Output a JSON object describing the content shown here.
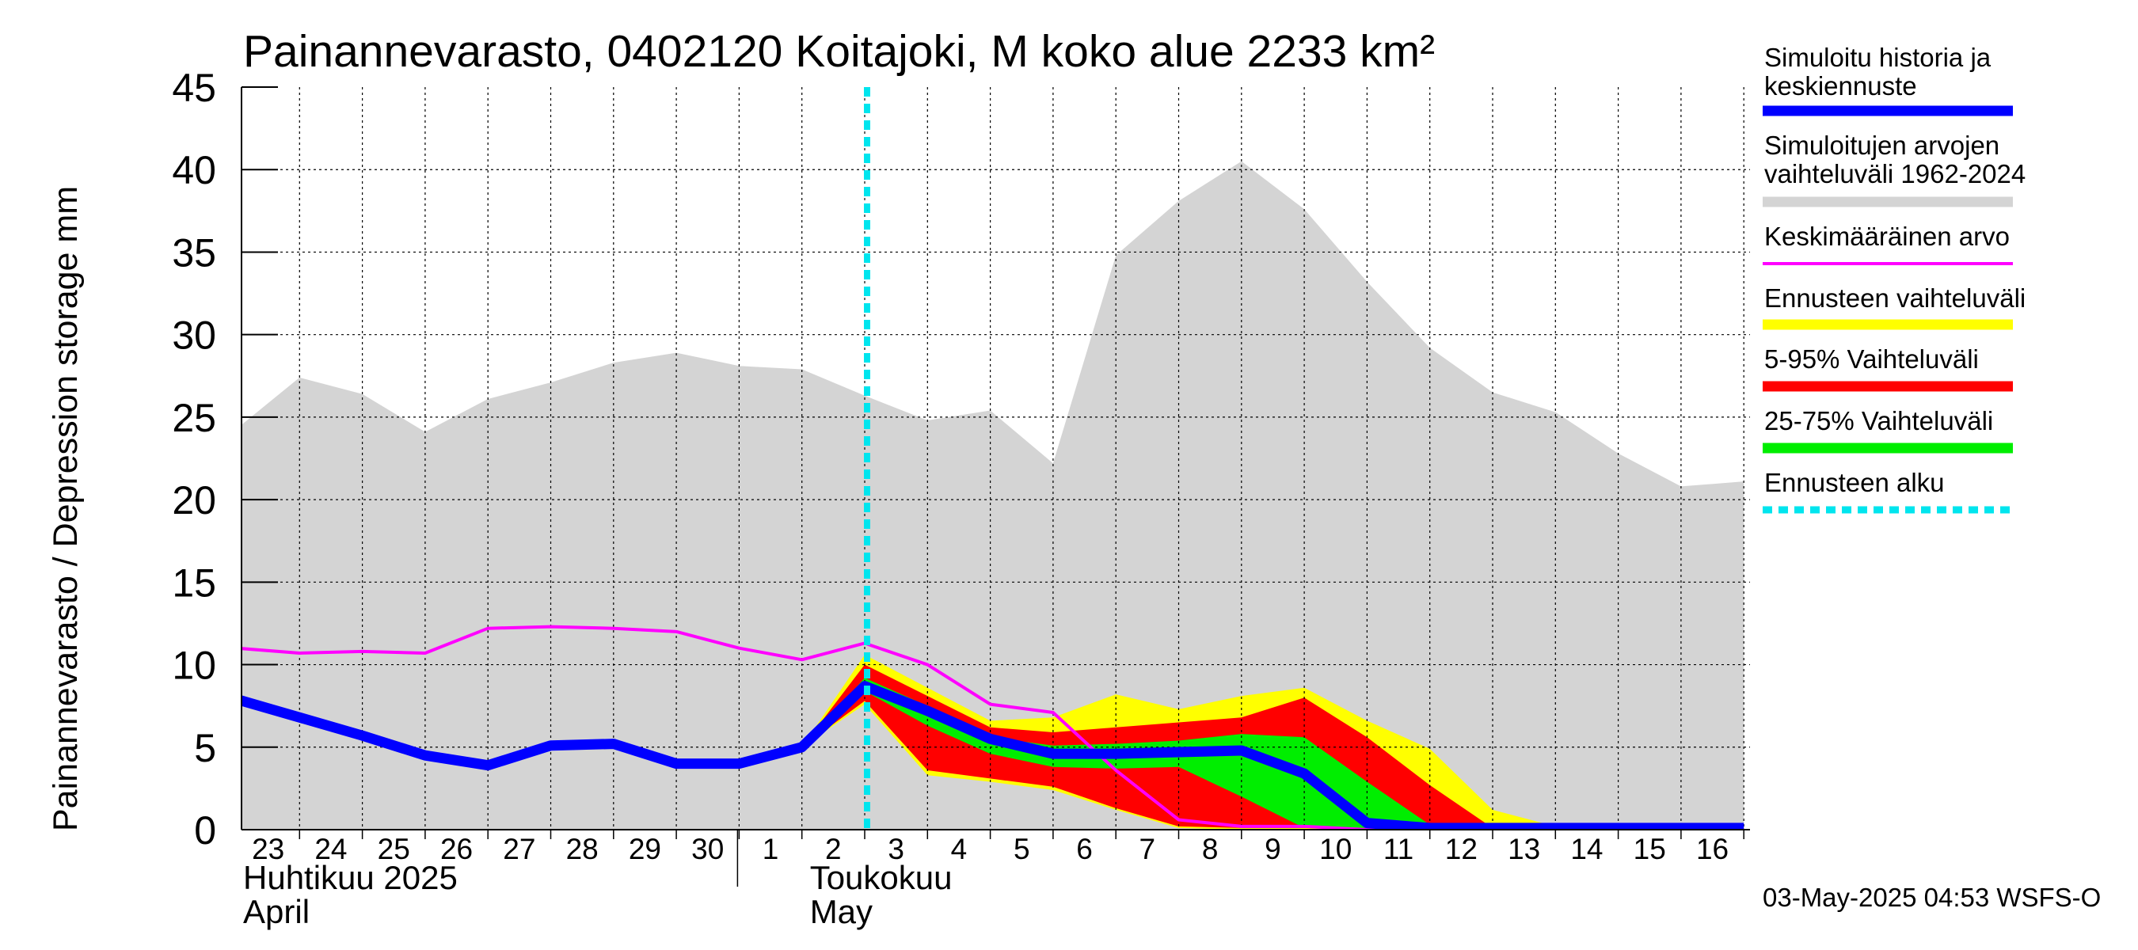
{
  "colors": {
    "background": "#ffffff",
    "history_band": "#d4d4d4",
    "forecast_full": "#ffff00",
    "forecast_5_95": "#ff0000",
    "forecast_25_75": "#00ee00",
    "simulated": "#0000ff",
    "mean": "#ff00ff",
    "forecast_start": "#00e5ee",
    "grid": "#000000"
  },
  "chart_data": {
    "type": "area",
    "title": "Painannevarasto, 0402120 Koitajoki, M koko alue 2233 km²",
    "ylabel": "Painannevarasto / Depression storage    mm",
    "ylim": [
      0,
      45
    ],
    "yticks": [
      0,
      5,
      10,
      15,
      20,
      25,
      30,
      35,
      40,
      45
    ],
    "x": [
      "2025-04-23",
      "2025-04-24",
      "2025-04-25",
      "2025-04-26",
      "2025-04-27",
      "2025-04-28",
      "2025-04-29",
      "2025-04-30",
      "2025-05-01",
      "2025-05-02",
      "2025-05-03",
      "2025-05-04",
      "2025-05-05",
      "2025-05-06",
      "2025-05-07",
      "2025-05-08",
      "2025-05-09",
      "2025-05-10",
      "2025-05-11",
      "2025-05-12",
      "2025-05-13",
      "2025-05-14",
      "2025-05-15",
      "2025-05-16",
      "2025-05-17"
    ],
    "xtick_labels": [
      "23",
      "24",
      "25",
      "26",
      "27",
      "28",
      "29",
      "30",
      "1",
      "2",
      "3",
      "4",
      "5",
      "6",
      "7",
      "8",
      "9",
      "10",
      "11",
      "12",
      "13",
      "14",
      "15",
      "16"
    ],
    "month_labels": [
      {
        "line1": "Huhtikuu  2025",
        "line2": "April"
      },
      {
        "line1": "Toukokuu",
        "line2": "May"
      }
    ],
    "grid": true,
    "forecast_start": "2025-05-03",
    "history_band": {
      "name": "Simuloitujen arvojen vaihteluväli 1962-2024",
      "upper": [
        24.3,
        27.4,
        26.4,
        24.1,
        26.1,
        27.1,
        28.3,
        28.9,
        28.1,
        27.9,
        26.3,
        24.8,
        25.4,
        22.2,
        34.8,
        38.1,
        40.5,
        37.6,
        33.2,
        29.2,
        26.5,
        25.3,
        22.8,
        20.8,
        21.1
      ],
      "lower": [
        0,
        0,
        0,
        0,
        0,
        0,
        0,
        0,
        0,
        0,
        0,
        0,
        0,
        0,
        0,
        0,
        0,
        0,
        0,
        0,
        0,
        0,
        0,
        0,
        0
      ]
    },
    "forecast_bands": [
      {
        "name": "Ennusteen vaihteluväli",
        "start": "2025-05-02",
        "upper": [
          5.0,
          10.6,
          8.6,
          6.6,
          6.8,
          8.2,
          7.3,
          8.1,
          8.6,
          6.6,
          4.9,
          1.2,
          0.2,
          0.1,
          0.1,
          0.1
        ],
        "lower": [
          5.0,
          7.6,
          3.3,
          2.9,
          2.4,
          1.2,
          0.1,
          0.0,
          0.0,
          0.0,
          0.0,
          0.0,
          0.0,
          0.0,
          0.0,
          0.0
        ]
      },
      {
        "name": "5-95% Vaihteluväli",
        "start": "2025-05-02",
        "upper": [
          5.0,
          10.0,
          8.1,
          6.2,
          5.9,
          6.2,
          6.5,
          6.8,
          8.0,
          5.6,
          2.7,
          0.1,
          0.1,
          0.1,
          0.1,
          0.1
        ],
        "lower": [
          5.0,
          7.8,
          3.6,
          3.1,
          2.6,
          1.3,
          0.2,
          0.1,
          0.1,
          0.0,
          0.0,
          0.0,
          0.0,
          0.0,
          0.0,
          0.0
        ]
      },
      {
        "name": "25-75% Vaihteluväli",
        "start": "2025-05-02",
        "upper": [
          5.0,
          9.2,
          7.5,
          5.6,
          5.1,
          5.2,
          5.4,
          5.8,
          5.6,
          2.9,
          0.3,
          0.1,
          0.1,
          0.1,
          0.1,
          0.1
        ],
        "lower": [
          5.0,
          8.4,
          6.3,
          4.6,
          3.8,
          3.7,
          3.8,
          2.0,
          0.1,
          0.1,
          0.0,
          0.0,
          0.0,
          0.0,
          0.0,
          0.0
        ]
      }
    ],
    "series": [
      {
        "name": "Simuloitu historia ja keskiennuste",
        "values": [
          7.9,
          6.8,
          5.7,
          4.5,
          3.9,
          5.1,
          5.2,
          4.0,
          4.0,
          5.0,
          8.7,
          7.2,
          5.5,
          4.6,
          4.6,
          4.7,
          4.8,
          3.4,
          0.4,
          0.1,
          0.1,
          0.1,
          0.1,
          0.1,
          0.1
        ]
      },
      {
        "name": "Keskimääräinen arvo",
        "values": [
          11.0,
          10.7,
          10.8,
          10.7,
          12.2,
          12.3,
          12.2,
          12.0,
          11.0,
          10.3,
          11.3,
          10.0,
          7.6,
          7.1,
          3.6,
          0.6,
          0.2,
          0.2,
          0.0,
          0.0,
          0.0,
          0.0,
          0.0,
          0.0,
          0.0
        ]
      }
    ],
    "legend": [
      {
        "label": "Simuloitu historia ja keskiennuste",
        "color": "#0000ff",
        "style": "thick"
      },
      {
        "label": "Simuloitujen arvojen vaihteluväli 1962-2024",
        "color": "#d4d4d4",
        "style": "thick"
      },
      {
        "label": "Keskimääräinen arvo",
        "color": "#ff00ff",
        "style": "thin"
      },
      {
        "label": "Ennusteen vaihteluväli",
        "color": "#ffff00",
        "style": "thick"
      },
      {
        "label": "5-95% Vaihteluväli",
        "color": "#ff0000",
        "style": "thick"
      },
      {
        "label": "25-75% Vaihteluväli",
        "color": "#00ee00",
        "style": "thick"
      },
      {
        "label": "Ennusteen alku",
        "color": "#00e5ee",
        "style": "dashed"
      }
    ],
    "legend_position": "right",
    "footer": "03-May-2025 04:53 WSFS-O"
  }
}
